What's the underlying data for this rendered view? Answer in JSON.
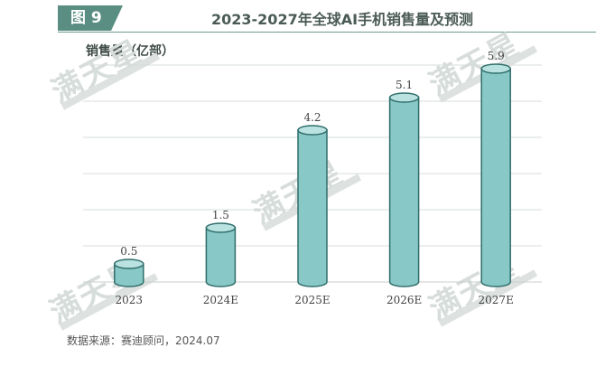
{
  "header": {
    "figure_label": "图 9",
    "title": "2023-2027年全球AI手机销售量及预测"
  },
  "watermark": {
    "text": "满天星"
  },
  "source": "数据来源：赛迪顾问，2024.07",
  "colors": {
    "bar_body": "#88c8c6",
    "bar_edge": "#2f6d6a",
    "bar_top": "#b9e2e0",
    "grid": "#d6dcda",
    "header_tag": "#5b8e83"
  },
  "chart_data": {
    "type": "bar",
    "ylabel": "销售量（亿部）",
    "categories": [
      "2023",
      "2024E",
      "2025E",
      "2026E",
      "2027E"
    ],
    "values": [
      0.5,
      1.5,
      4.2,
      5.1,
      5.9
    ],
    "value_labels": [
      "0.5",
      "1.5",
      "4.2",
      "5.1",
      "5.9"
    ],
    "ylim": [
      0,
      6
    ],
    "grid": true,
    "legend": "none",
    "bar_style": "cylinder"
  }
}
